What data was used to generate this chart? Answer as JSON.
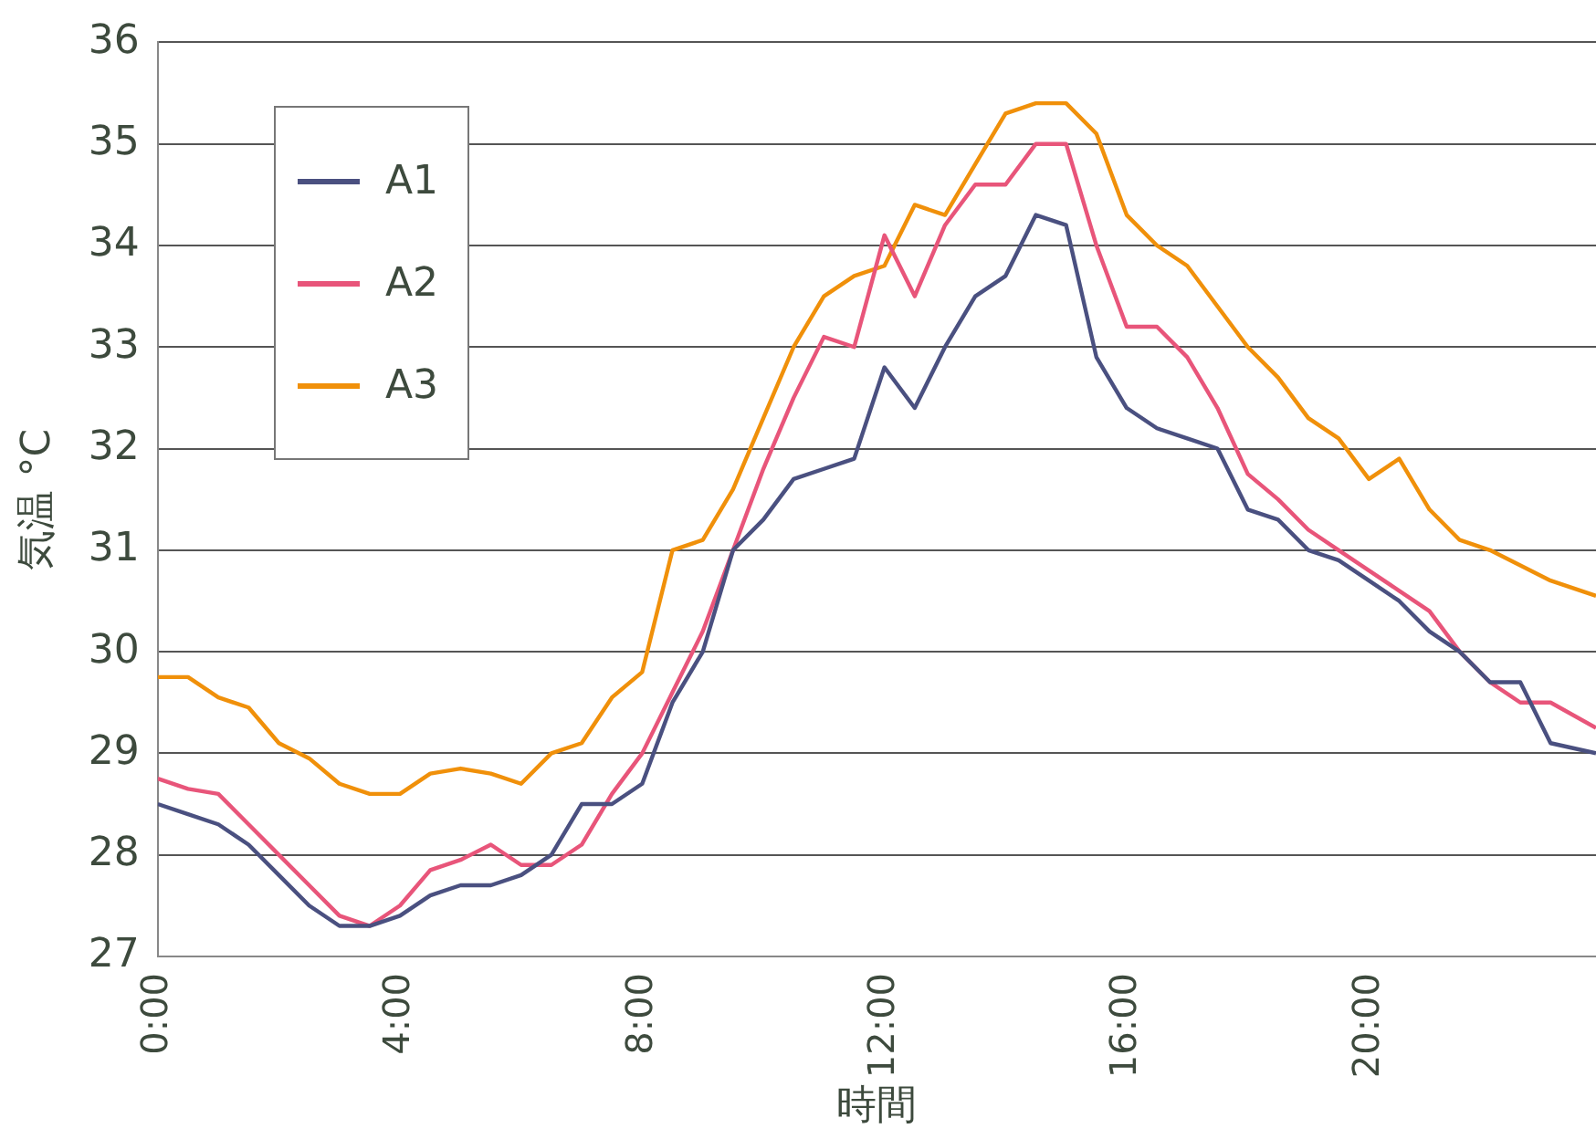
{
  "chart_data": {
    "type": "line",
    "xlabel": "時間",
    "ylabel": "気温 °C",
    "xlim": [
      0,
      23.75
    ],
    "xticks": [
      {
        "value": 0,
        "label": "0:00"
      },
      {
        "value": 4,
        "label": "4:00"
      },
      {
        "value": 8,
        "label": "8:00"
      },
      {
        "value": 12,
        "label": "12:00"
      },
      {
        "value": 16,
        "label": "16:00"
      },
      {
        "value": 20,
        "label": "20:00"
      }
    ],
    "ylim": [
      27,
      36
    ],
    "yticks": [
      27,
      28,
      29,
      30,
      31,
      32,
      33,
      34,
      35,
      36
    ],
    "grid": "y",
    "legend": "top left",
    "marker": "none",
    "line_style": "solid",
    "x": [
      0,
      0.5,
      1,
      1.5,
      2,
      2.5,
      3,
      3.5,
      4,
      4.5,
      5,
      5.5,
      6,
      6.5,
      7,
      7.5,
      8,
      8.5,
      9,
      9.5,
      10,
      10.5,
      11,
      11.5,
      12,
      12.5,
      13,
      13.5,
      14,
      14.5,
      15,
      15.5,
      16,
      16.5,
      17,
      17.5,
      18,
      18.5,
      19,
      19.5,
      20,
      20.5,
      21,
      21.5,
      22,
      22.5,
      23,
      23.75
    ],
    "series": [
      {
        "name": "A1",
        "color": "#4a5080",
        "values": [
          28.5,
          28.4,
          28.3,
          28.1,
          27.8,
          27.5,
          27.3,
          27.3,
          27.4,
          27.6,
          27.7,
          27.7,
          27.8,
          28.0,
          28.5,
          28.5,
          28.7,
          29.5,
          30.0,
          31.0,
          31.3,
          31.7,
          31.8,
          31.9,
          32.8,
          32.4,
          33.0,
          33.5,
          33.7,
          34.3,
          34.2,
          32.9,
          32.4,
          32.2,
          32.1,
          32.0,
          31.4,
          31.3,
          31.0,
          30.9,
          30.7,
          30.5,
          30.2,
          30.0,
          29.7,
          29.7,
          29.1,
          29.0
        ]
      },
      {
        "name": "A2",
        "color": "#e8557a",
        "values": [
          28.75,
          28.65,
          28.6,
          28.3,
          28.0,
          27.7,
          27.4,
          27.3,
          27.5,
          27.85,
          27.95,
          28.1,
          27.9,
          27.9,
          28.1,
          28.6,
          29.0,
          29.6,
          30.2,
          31.0,
          31.8,
          32.5,
          33.1,
          33.0,
          34.1,
          33.5,
          34.2,
          34.6,
          34.6,
          35.0,
          35.0,
          34.0,
          33.2,
          33.2,
          32.9,
          32.4,
          31.75,
          31.5,
          31.2,
          31.0,
          30.8,
          30.6,
          30.4,
          30.0,
          29.7,
          29.5,
          29.5,
          29.25
        ]
      },
      {
        "name": "A3",
        "color": "#f0900a",
        "values": [
          29.75,
          29.75,
          29.55,
          29.45,
          29.1,
          28.95,
          28.7,
          28.6,
          28.6,
          28.8,
          28.85,
          28.8,
          28.7,
          29.0,
          29.1,
          29.55,
          29.8,
          31.0,
          31.1,
          31.6,
          32.3,
          33.0,
          33.5,
          33.7,
          33.8,
          34.4,
          34.3,
          34.8,
          35.3,
          35.4,
          35.4,
          35.1,
          34.3,
          34.0,
          33.8,
          33.4,
          33.0,
          32.7,
          32.3,
          32.1,
          31.7,
          31.9,
          31.4,
          31.1,
          31.0,
          30.85,
          30.7,
          30.55
        ]
      }
    ]
  }
}
